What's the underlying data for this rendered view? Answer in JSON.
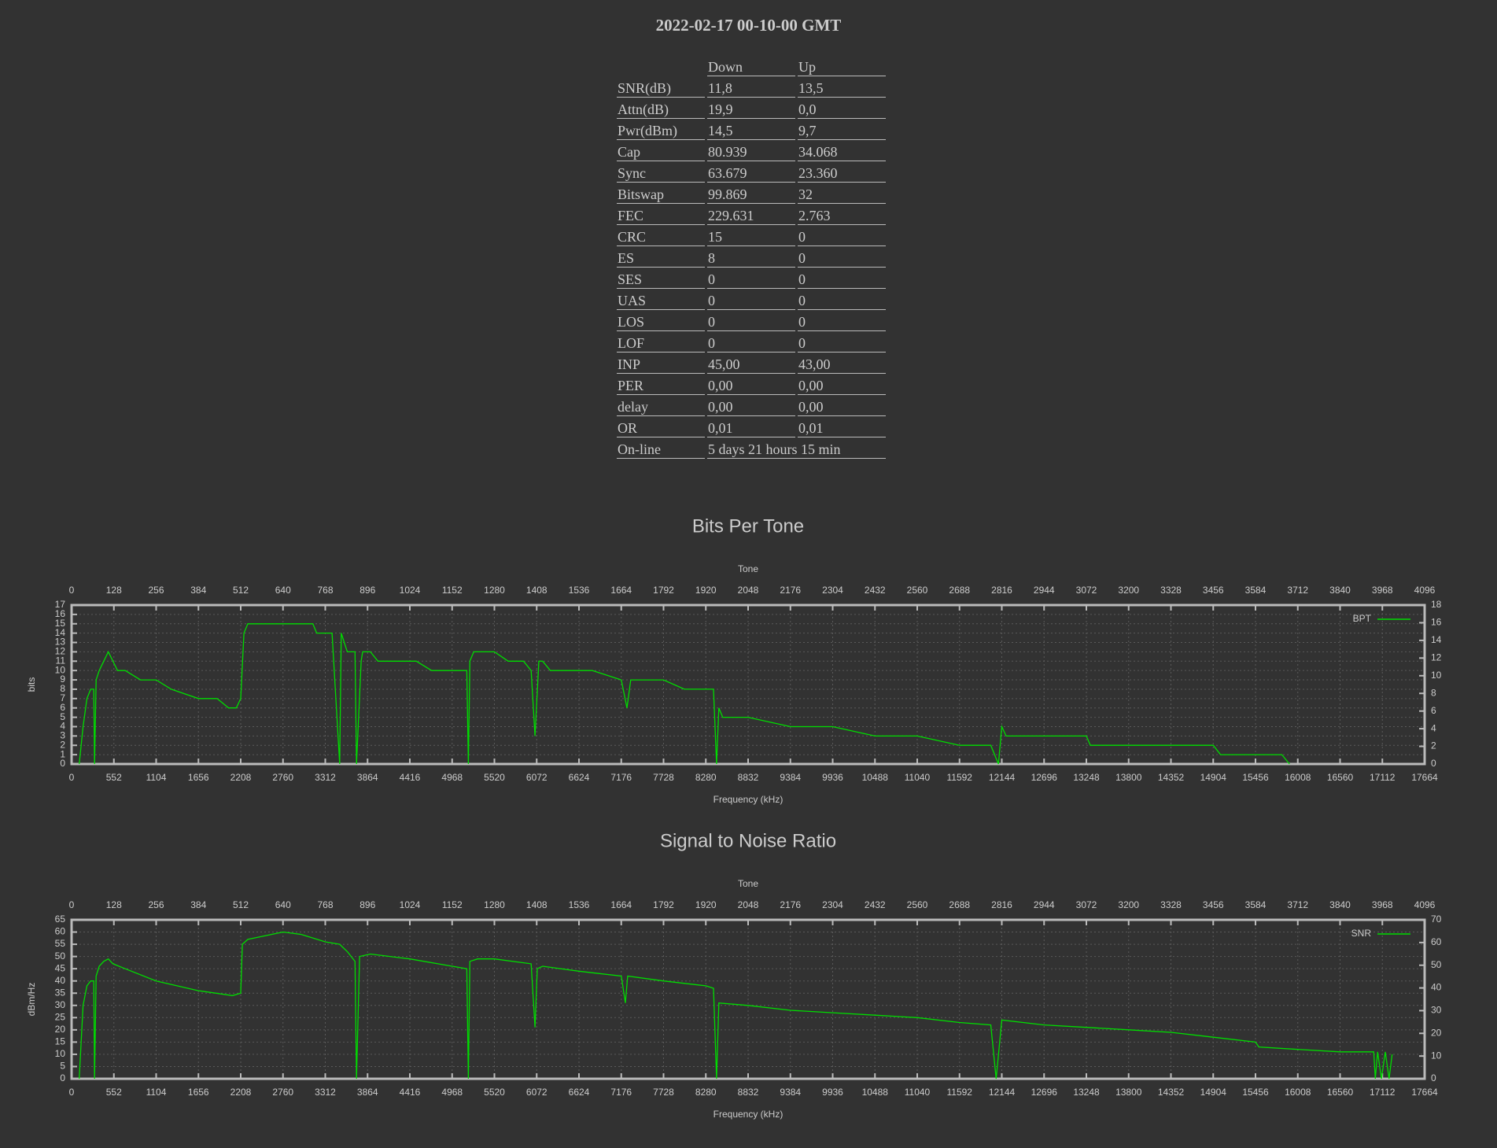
{
  "header": {
    "title": "2022-02-17 00-10-00 GMT"
  },
  "table": {
    "columns": [
      "Down",
      "Up"
    ],
    "rows": [
      [
        "SNR(dB)",
        "11,8",
        "13,5"
      ],
      [
        "Attn(dB)",
        "19,9",
        "0,0"
      ],
      [
        "Pwr(dBm)",
        "14,5",
        "9,7"
      ],
      [
        "Cap",
        "80.939",
        "34.068"
      ],
      [
        "Sync",
        "63.679",
        "23.360"
      ],
      [
        "Bitswap",
        "99.869",
        "32"
      ],
      [
        "FEC",
        "229.631",
        "2.763"
      ],
      [
        "CRC",
        "15",
        "0"
      ],
      [
        "ES",
        "8",
        "0"
      ],
      [
        "SES",
        "0",
        "0"
      ],
      [
        "UAS",
        "0",
        "0"
      ],
      [
        "LOS",
        "0",
        "0"
      ],
      [
        "LOF",
        "0",
        "0"
      ],
      [
        "INP",
        "45,00",
        "43,00"
      ],
      [
        "PER",
        "0,00",
        "0,00"
      ],
      [
        "delay",
        "0,00",
        "0,00"
      ],
      [
        "OR",
        "0,01",
        "0,01"
      ],
      [
        "On-line",
        "5 days 21 hours 15 min"
      ]
    ]
  },
  "chart_data": [
    {
      "type": "line",
      "title": "Bits Per Tone",
      "x_label": "Frequency (kHz)",
      "x2_label": "Tone",
      "y_label": "bits",
      "grid": true,
      "legend": "upper right",
      "x": [
        100,
        150,
        200,
        250,
        290,
        300,
        320,
        360,
        420,
        480,
        540,
        600,
        700,
        900,
        1104,
        1300,
        1656,
        1900,
        2050,
        2150,
        2208,
        2250,
        2300,
        2400,
        2760,
        3150,
        3200,
        3312,
        3400,
        3500,
        3520,
        3560,
        3600,
        3700,
        3720,
        3780,
        3800,
        3900,
        4000,
        4416,
        4500,
        4700,
        4968,
        5160,
        5180,
        5200,
        5250,
        5520,
        5700,
        5900,
        6000,
        6050,
        6100,
        6150,
        6250,
        6624,
        6800,
        7176,
        7250,
        7300,
        7400,
        7728,
        8000,
        8280,
        8380,
        8420,
        8450,
        8500,
        8832,
        9384,
        9500,
        9936,
        10488,
        11040,
        11592,
        12000,
        12100,
        12144,
        12200,
        12696,
        13248,
        13300,
        13500,
        14352,
        14904,
        15000,
        15456,
        15500,
        15800,
        15900
      ],
      "series": [
        {
          "name": "BPT",
          "color": "#00dd00",
          "values": [
            0,
            4,
            7,
            8,
            8,
            0,
            9,
            10,
            11,
            12,
            11,
            10,
            10,
            9,
            9,
            8,
            7,
            7,
            6,
            6,
            7,
            14,
            15,
            15,
            15,
            15,
            14,
            14,
            14,
            0,
            14,
            13,
            12,
            12,
            0,
            11,
            12,
            12,
            11,
            11,
            11,
            10,
            10,
            10,
            0,
            11,
            12,
            12,
            11,
            11,
            10,
            3,
            11,
            11,
            10,
            10,
            10,
            9,
            6,
            9,
            9,
            9,
            8,
            8,
            8,
            0,
            6,
            5,
            5,
            4,
            4,
            4,
            3,
            3,
            2,
            2,
            0,
            4,
            3,
            3,
            3,
            2,
            2,
            2,
            2,
            1,
            1,
            1,
            1,
            0
          ]
        }
      ],
      "xlim": [
        0,
        17664
      ],
      "xticks": [
        0,
        552,
        1104,
        1656,
        2208,
        2760,
        3312,
        3864,
        4416,
        4968,
        5520,
        6072,
        6624,
        7176,
        7728,
        8280,
        8832,
        9384,
        9936,
        10488,
        11040,
        11592,
        12144,
        12696,
        13248,
        13800,
        14352,
        14904,
        15456,
        16008,
        16560,
        17112,
        17664
      ],
      "x2lim": [
        0,
        4096
      ],
      "x2ticks": [
        0,
        128,
        256,
        384,
        512,
        640,
        768,
        896,
        1024,
        1152,
        1280,
        1408,
        1536,
        1664,
        1792,
        1920,
        2048,
        2176,
        2304,
        2432,
        2560,
        2688,
        2816,
        2944,
        3072,
        3200,
        3328,
        3456,
        3584,
        3712,
        3840,
        3968,
        4096
      ],
      "ylim": [
        0,
        17
      ],
      "yticks": [
        0,
        1,
        2,
        3,
        4,
        5,
        6,
        7,
        8,
        9,
        10,
        11,
        12,
        13,
        14,
        15,
        16,
        17
      ],
      "y2lim": [
        0,
        18
      ],
      "y2ticks": [
        0,
        2,
        4,
        6,
        8,
        10,
        12,
        14,
        16,
        18
      ]
    },
    {
      "type": "line",
      "title": "Signal to Noise Ratio",
      "x_label": "Frequency (kHz)",
      "x2_label": "Tone",
      "y_label": "dBm/Hz",
      "grid": true,
      "legend": "upper right",
      "x": [
        100,
        150,
        200,
        250,
        290,
        300,
        320,
        360,
        420,
        480,
        540,
        700,
        1104,
        1656,
        2100,
        2208,
        2230,
        2300,
        2760,
        3000,
        3312,
        3500,
        3600,
        3700,
        3720,
        3760,
        3900,
        4416,
        4968,
        5160,
        5180,
        5200,
        5300,
        5520,
        6000,
        6050,
        6080,
        6150,
        6624,
        7176,
        7230,
        7260,
        7728,
        8280,
        8380,
        8420,
        8450,
        8832,
        9384,
        9936,
        10488,
        11040,
        11592,
        12000,
        12070,
        12144,
        12696,
        13248,
        13800,
        14352,
        14904,
        15456,
        15500,
        16008,
        16560,
        17000,
        17020,
        17050,
        17100,
        17150,
        17200,
        17240
      ],
      "series": [
        {
          "name": "SNR",
          "color": "#00dd00",
          "values": [
            0,
            30,
            38,
            40,
            40,
            0,
            42,
            46,
            48,
            49,
            47,
            45,
            40,
            36,
            34,
            35,
            55,
            57,
            60,
            59,
            56,
            55,
            52,
            48,
            0,
            50,
            51,
            49,
            46,
            45,
            0,
            48,
            49,
            49,
            47,
            21,
            45,
            46,
            44,
            42,
            31,
            42,
            40,
            38,
            37,
            0,
            31,
            30,
            28,
            27,
            26,
            25,
            23,
            22,
            0,
            24,
            22,
            21,
            20,
            19,
            17,
            15,
            13,
            12,
            11,
            11,
            0,
            11,
            0,
            11,
            0,
            10
          ]
        }
      ],
      "xlim": [
        0,
        17664
      ],
      "xticks": [
        0,
        552,
        1104,
        1656,
        2208,
        2760,
        3312,
        3864,
        4416,
        4968,
        5520,
        6072,
        6624,
        7176,
        7728,
        8280,
        8832,
        9384,
        9936,
        10488,
        11040,
        11592,
        12144,
        12696,
        13248,
        13800,
        14352,
        14904,
        15456,
        16008,
        16560,
        17112,
        17664
      ],
      "x2lim": [
        0,
        4096
      ],
      "x2ticks": [
        0,
        128,
        256,
        384,
        512,
        640,
        768,
        896,
        1024,
        1152,
        1280,
        1408,
        1536,
        1664,
        1792,
        1920,
        2048,
        2176,
        2304,
        2432,
        2560,
        2688,
        2816,
        2944,
        3072,
        3200,
        3328,
        3456,
        3584,
        3712,
        3840,
        3968,
        4096
      ],
      "ylim": [
        0,
        65
      ],
      "yticks": [
        0,
        5,
        10,
        15,
        20,
        25,
        30,
        35,
        40,
        45,
        50,
        55,
        60,
        65
      ],
      "y2lim": [
        0,
        70
      ],
      "y2ticks": [
        0,
        10,
        20,
        30,
        40,
        50,
        60,
        70
      ]
    }
  ]
}
